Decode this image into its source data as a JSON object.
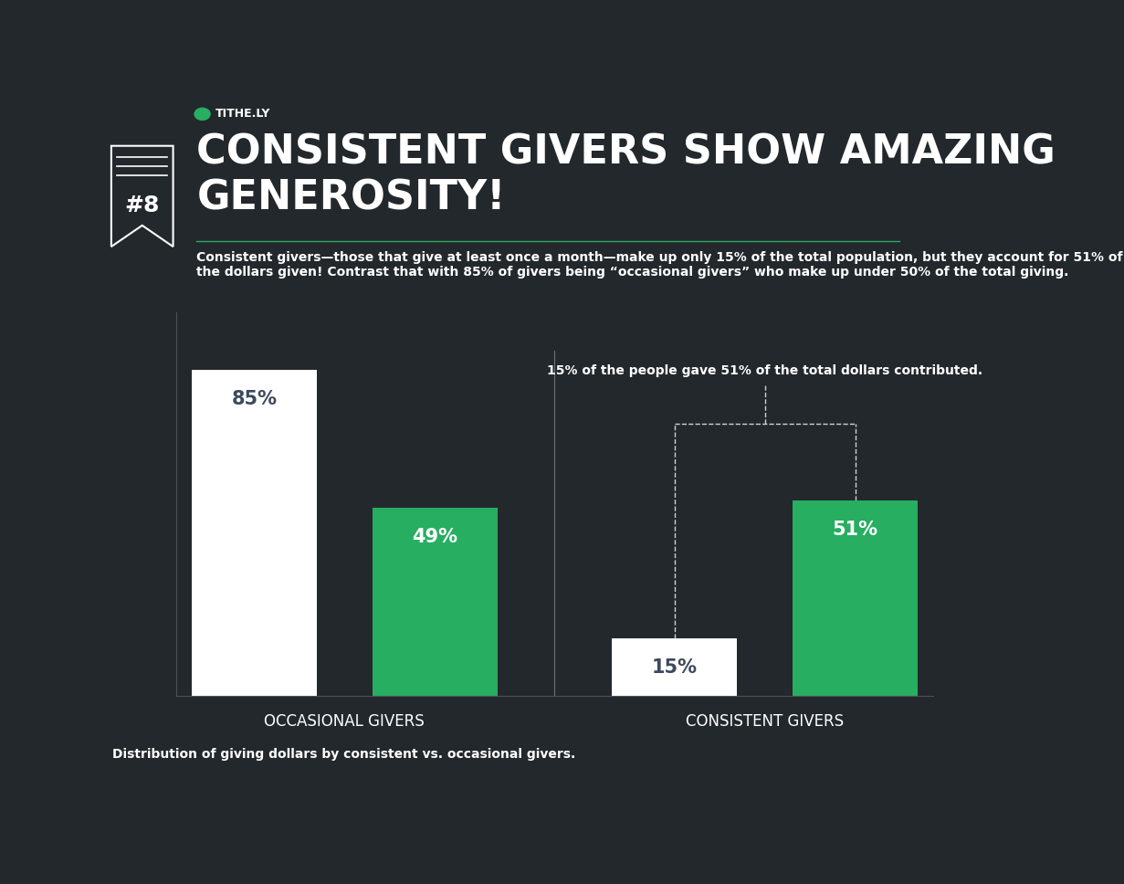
{
  "chart_data": {
    "type": "bar",
    "brand": "TITHE.LY",
    "badge": "#8",
    "title": "CONSISTENT GIVERS SHOW AMAZING GENEROSITY!",
    "subtitle": "Consistent givers—those that give at least once a month—make up only 15% of the total population, but they account for 51% of the dollars given! Contrast that with 85% of givers being “occasional givers” who make up under 50% of the total giving.",
    "annotation": "15% of the people gave 51% of the total dollars contributed.",
    "caption": "Distribution of giving dollars by consistent vs. occasional givers.",
    "categories": [
      "OCCASIONAL GIVERS",
      "CONSISTENT GIVERS"
    ],
    "series": [
      {
        "color": "#ffffff",
        "values": [
          85,
          15
        ],
        "value_labels": [
          "85%",
          "15%"
        ]
      },
      {
        "color": "#27ae60",
        "values": [
          49,
          51
        ],
        "value_labels": [
          "49%",
          "51%"
        ]
      }
    ],
    "ylim": [
      0,
      100
    ],
    "data_labels": true,
    "tick_labels": "x"
  }
}
